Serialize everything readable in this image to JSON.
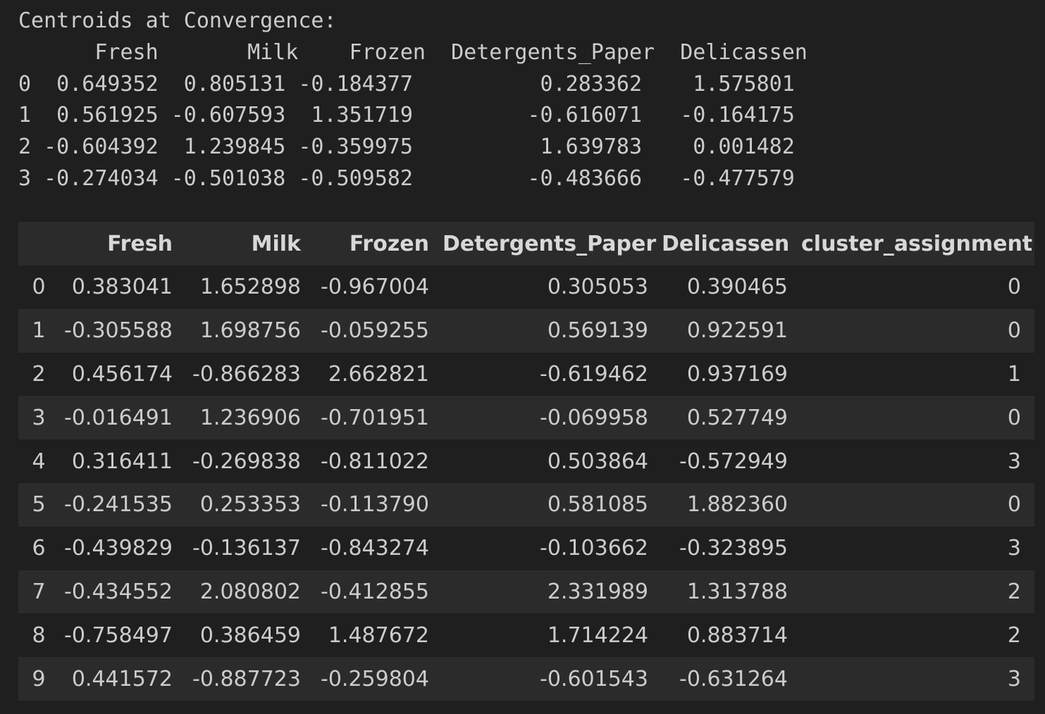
{
  "centroids": {
    "lines": [
      "Centroids at Convergence:",
      "      Fresh       Milk    Frozen  Detergents_Paper  Delicassen",
      "0  0.649352  0.805131 -0.184377          0.283362    1.575801",
      "1  0.561925 -0.607593  1.351719         -0.616071   -0.164175",
      "2 -0.604392  1.239845 -0.359975          1.639783    0.001482",
      "3 -0.274034 -0.501038 -0.509582         -0.483666   -0.477579"
    ]
  },
  "dataframe": {
    "columns": [
      "",
      "Fresh",
      "Milk",
      "Frozen",
      "Detergents_Paper",
      "Delicassen",
      "cluster_assignment"
    ],
    "rows": [
      [
        "0",
        "0.383041",
        "1.652898",
        "-0.967004",
        "0.305053",
        "0.390465",
        "0"
      ],
      [
        "1",
        "-0.305588",
        "1.698756",
        "-0.059255",
        "0.569139",
        "0.922591",
        "0"
      ],
      [
        "2",
        "0.456174",
        "-0.866283",
        "2.662821",
        "-0.619462",
        "0.937169",
        "1"
      ],
      [
        "3",
        "-0.016491",
        "1.236906",
        "-0.701951",
        "-0.069958",
        "0.527749",
        "0"
      ],
      [
        "4",
        "0.316411",
        "-0.269838",
        "-0.811022",
        "0.503864",
        "-0.572949",
        "3"
      ],
      [
        "5",
        "-0.241535",
        "0.253353",
        "-0.113790",
        "0.581085",
        "1.882360",
        "0"
      ],
      [
        "6",
        "-0.439829",
        "-0.136137",
        "-0.843274",
        "-0.103662",
        "-0.323895",
        "3"
      ],
      [
        "7",
        "-0.434552",
        "2.080802",
        "-0.412855",
        "2.331989",
        "1.313788",
        "2"
      ],
      [
        "8",
        "-0.758497",
        "0.386459",
        "1.487672",
        "1.714224",
        "0.883714",
        "2"
      ],
      [
        "9",
        "0.441572",
        "-0.887723",
        "-0.259804",
        "-0.601543",
        "-0.631264",
        "3"
      ]
    ]
  }
}
